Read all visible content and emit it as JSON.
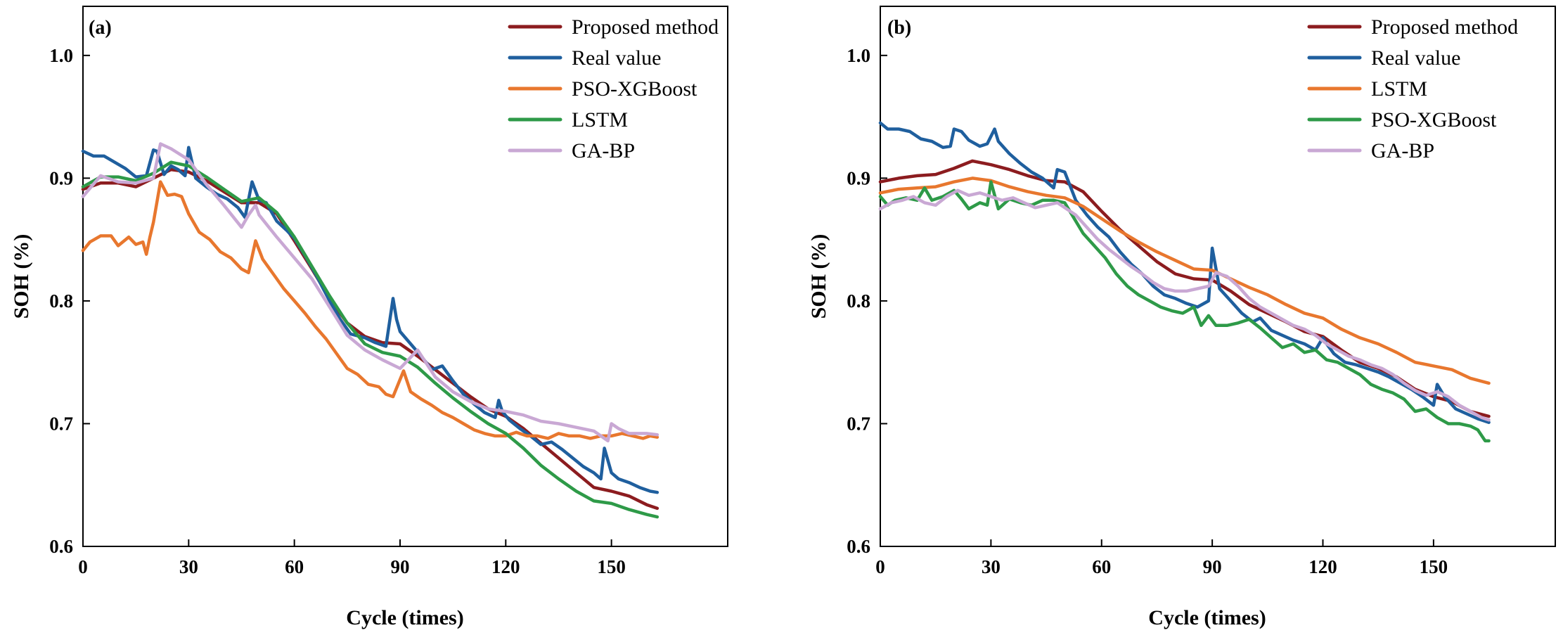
{
  "chart_data": [
    {
      "type": "line",
      "panel_label": "(a)",
      "xlabel": "Cycle (times)",
      "ylabel": "SOH (%)",
      "xlim": [
        0,
        183
      ],
      "ylim": [
        0.6,
        1.04
      ],
      "xticks": [
        0,
        30,
        60,
        90,
        120,
        150
      ],
      "xtick_labels": [
        "0",
        "30",
        "60",
        "90",
        "120",
        "150"
      ],
      "yticks": [
        0.6,
        0.7,
        0.8,
        0.9,
        1.0
      ],
      "ytick_labels": [
        "0.6",
        "0.7",
        "0.8",
        "0.9",
        "1.0"
      ],
      "legend_position": "top-right",
      "series": [
        {
          "name": "Proposed method",
          "color": "#8c1c1f",
          "x": [
            0,
            5,
            10,
            15,
            20,
            25,
            30,
            35,
            40,
            45,
            50,
            55,
            60,
            65,
            70,
            75,
            80,
            85,
            90,
            95,
            100,
            105,
            110,
            115,
            120,
            125,
            130,
            135,
            140,
            145,
            150,
            155,
            160,
            163
          ],
          "y": [
            0.891,
            0.896,
            0.896,
            0.893,
            0.9,
            0.907,
            0.905,
            0.898,
            0.889,
            0.88,
            0.88,
            0.871,
            0.849,
            0.826,
            0.802,
            0.782,
            0.771,
            0.766,
            0.765,
            0.755,
            0.744,
            0.733,
            0.722,
            0.712,
            0.706,
            0.696,
            0.684,
            0.672,
            0.66,
            0.648,
            0.645,
            0.641,
            0.634,
            0.631
          ]
        },
        {
          "name": "Real value",
          "color": "#1f5f9e",
          "x": [
            0,
            3,
            6,
            9,
            12,
            15,
            18,
            20,
            21,
            23,
            25,
            27,
            29,
            30,
            32,
            35,
            38,
            41,
            44,
            46,
            48,
            50,
            52,
            55,
            58,
            60,
            63,
            66,
            70,
            73,
            76,
            80,
            83,
            86,
            88,
            89,
            90,
            93,
            96,
            99,
            102,
            105,
            108,
            111,
            114,
            117,
            118,
            119,
            121,
            124,
            127,
            130,
            133,
            136,
            139,
            142,
            145,
            147,
            148,
            149,
            150,
            152,
            155,
            158,
            161,
            163
          ],
          "y": [
            0.922,
            0.918,
            0.918,
            0.913,
            0.908,
            0.901,
            0.902,
            0.923,
            0.922,
            0.903,
            0.91,
            0.907,
            0.902,
            0.925,
            0.9,
            0.893,
            0.887,
            0.883,
            0.876,
            0.868,
            0.897,
            0.882,
            0.88,
            0.865,
            0.857,
            0.851,
            0.837,
            0.822,
            0.8,
            0.785,
            0.773,
            0.77,
            0.766,
            0.763,
            0.802,
            0.785,
            0.775,
            0.765,
            0.755,
            0.744,
            0.747,
            0.735,
            0.724,
            0.716,
            0.709,
            0.705,
            0.719,
            0.71,
            0.703,
            0.696,
            0.69,
            0.683,
            0.685,
            0.679,
            0.672,
            0.665,
            0.66,
            0.655,
            0.68,
            0.67,
            0.66,
            0.655,
            0.652,
            0.648,
            0.645,
            0.644
          ]
        },
        {
          "name": "PSO-XGBoost",
          "color": "#e8772e",
          "x": [
            0,
            2,
            5,
            8,
            10,
            13,
            15,
            17,
            18,
            19,
            20,
            22,
            24,
            26,
            28,
            30,
            33,
            36,
            39,
            42,
            45,
            47,
            49,
            51,
            54,
            57,
            60,
            63,
            66,
            69,
            72,
            75,
            78,
            81,
            84,
            86,
            88,
            90,
            91,
            93,
            96,
            99,
            102,
            105,
            108,
            111,
            114,
            117,
            120,
            123,
            126,
            129,
            132,
            135,
            138,
            141,
            144,
            147,
            150,
            153,
            156,
            159,
            161,
            163
          ],
          "y": [
            0.841,
            0.848,
            0.853,
            0.853,
            0.845,
            0.852,
            0.846,
            0.848,
            0.838,
            0.852,
            0.864,
            0.897,
            0.886,
            0.887,
            0.885,
            0.871,
            0.856,
            0.85,
            0.84,
            0.835,
            0.826,
            0.823,
            0.849,
            0.834,
            0.822,
            0.81,
            0.8,
            0.79,
            0.779,
            0.769,
            0.757,
            0.745,
            0.74,
            0.732,
            0.73,
            0.724,
            0.722,
            0.736,
            0.743,
            0.726,
            0.72,
            0.715,
            0.709,
            0.705,
            0.7,
            0.695,
            0.692,
            0.69,
            0.69,
            0.693,
            0.69,
            0.69,
            0.688,
            0.692,
            0.69,
            0.69,
            0.688,
            0.69,
            0.69,
            0.692,
            0.69,
            0.688,
            0.69,
            0.689
          ]
        },
        {
          "name": "LSTM",
          "color": "#2e9a48",
          "x": [
            0,
            5,
            10,
            15,
            20,
            25,
            30,
            35,
            40,
            45,
            50,
            55,
            60,
            65,
            70,
            75,
            80,
            85,
            90,
            95,
            100,
            105,
            110,
            115,
            120,
            125,
            130,
            135,
            140,
            145,
            150,
            155,
            160,
            163
          ],
          "y": [
            0.893,
            0.901,
            0.901,
            0.898,
            0.904,
            0.913,
            0.91,
            0.901,
            0.891,
            0.881,
            0.884,
            0.872,
            0.852,
            0.828,
            0.804,
            0.782,
            0.765,
            0.758,
            0.755,
            0.746,
            0.733,
            0.721,
            0.71,
            0.7,
            0.692,
            0.68,
            0.666,
            0.655,
            0.645,
            0.637,
            0.635,
            0.63,
            0.626,
            0.624
          ]
        },
        {
          "name": "GA-BP",
          "color": "#c9a8d4",
          "x": [
            0,
            5,
            10,
            15,
            20,
            22,
            25,
            30,
            35,
            40,
            45,
            47,
            49,
            50,
            55,
            60,
            65,
            70,
            75,
            80,
            85,
            90,
            95,
            100,
            105,
            110,
            115,
            120,
            125,
            130,
            135,
            140,
            145,
            149,
            150,
            152,
            155,
            160,
            163
          ],
          "y": [
            0.885,
            0.902,
            0.897,
            0.896,
            0.9,
            0.928,
            0.924,
            0.915,
            0.895,
            0.878,
            0.86,
            0.87,
            0.878,
            0.87,
            0.852,
            0.835,
            0.818,
            0.795,
            0.772,
            0.76,
            0.752,
            0.745,
            0.76,
            0.738,
            0.726,
            0.718,
            0.712,
            0.71,
            0.707,
            0.702,
            0.7,
            0.697,
            0.694,
            0.686,
            0.7,
            0.696,
            0.692,
            0.692,
            0.691
          ]
        }
      ]
    },
    {
      "type": "line",
      "panel_label": "(b)",
      "xlabel": "Cycle (times)",
      "ylabel": "SOH (%)",
      "xlim": [
        0,
        183
      ],
      "ylim": [
        0.6,
        1.04
      ],
      "xticks": [
        0,
        30,
        60,
        90,
        120,
        150
      ],
      "xtick_labels": [
        "0",
        "30",
        "60",
        "90",
        "120",
        "150"
      ],
      "yticks": [
        0.6,
        0.7,
        0.8,
        0.9,
        1.0
      ],
      "ytick_labels": [
        "0.6",
        "0.7",
        "0.8",
        "0.9",
        "1.0"
      ],
      "legend_position": "top-right",
      "series": [
        {
          "name": "Proposed method",
          "color": "#8c1c1f",
          "x": [
            0,
            5,
            10,
            15,
            20,
            25,
            30,
            35,
            40,
            45,
            50,
            55,
            60,
            65,
            70,
            75,
            80,
            85,
            90,
            95,
            100,
            105,
            110,
            115,
            120,
            125,
            130,
            135,
            140,
            145,
            150,
            155,
            160,
            165
          ],
          "y": [
            0.897,
            0.9,
            0.902,
            0.903,
            0.908,
            0.914,
            0.911,
            0.907,
            0.902,
            0.898,
            0.897,
            0.889,
            0.873,
            0.858,
            0.845,
            0.832,
            0.822,
            0.818,
            0.817,
            0.808,
            0.797,
            0.79,
            0.783,
            0.775,
            0.771,
            0.76,
            0.75,
            0.745,
            0.738,
            0.728,
            0.722,
            0.718,
            0.71,
            0.706
          ]
        },
        {
          "name": "Real value",
          "color": "#1f5f9e",
          "x": [
            0,
            2,
            5,
            8,
            11,
            14,
            17,
            19,
            20,
            22,
            24,
            27,
            29,
            31,
            32,
            35,
            38,
            41,
            44,
            47,
            48,
            50,
            53,
            56,
            59,
            62,
            65,
            68,
            71,
            74,
            77,
            80,
            83,
            86,
            89,
            90,
            92,
            95,
            98,
            101,
            103,
            106,
            109,
            112,
            115,
            118,
            120,
            121,
            123,
            126,
            129,
            132,
            135,
            138,
            141,
            144,
            147,
            150,
            151,
            153,
            156,
            159,
            162,
            165
          ],
          "y": [
            0.945,
            0.94,
            0.94,
            0.938,
            0.932,
            0.93,
            0.925,
            0.926,
            0.94,
            0.938,
            0.931,
            0.926,
            0.928,
            0.94,
            0.93,
            0.92,
            0.912,
            0.905,
            0.9,
            0.892,
            0.907,
            0.905,
            0.882,
            0.87,
            0.86,
            0.852,
            0.84,
            0.83,
            0.822,
            0.812,
            0.805,
            0.802,
            0.798,
            0.795,
            0.8,
            0.843,
            0.81,
            0.8,
            0.79,
            0.783,
            0.786,
            0.776,
            0.772,
            0.768,
            0.765,
            0.76,
            0.77,
            0.765,
            0.757,
            0.75,
            0.748,
            0.745,
            0.742,
            0.738,
            0.733,
            0.728,
            0.722,
            0.715,
            0.732,
            0.722,
            0.712,
            0.708,
            0.704,
            0.701
          ]
        },
        {
          "name": "LSTM",
          "color": "#e8772e",
          "x": [
            0,
            5,
            10,
            15,
            20,
            25,
            30,
            35,
            40,
            45,
            50,
            55,
            60,
            65,
            70,
            75,
            80,
            85,
            90,
            95,
            100,
            105,
            110,
            115,
            120,
            125,
            130,
            135,
            140,
            145,
            150,
            155,
            160,
            165
          ],
          "y": [
            0.888,
            0.891,
            0.892,
            0.893,
            0.897,
            0.9,
            0.898,
            0.893,
            0.889,
            0.886,
            0.884,
            0.877,
            0.867,
            0.857,
            0.848,
            0.84,
            0.833,
            0.826,
            0.825,
            0.818,
            0.811,
            0.805,
            0.797,
            0.79,
            0.786,
            0.777,
            0.77,
            0.765,
            0.758,
            0.75,
            0.747,
            0.744,
            0.737,
            0.733
          ]
        },
        {
          "name": "PSO-XGBoost",
          "color": "#2e9a48",
          "x": [
            0,
            2,
            4,
            7,
            10,
            12,
            14,
            17,
            20,
            22,
            24,
            27,
            29,
            30,
            32,
            35,
            38,
            41,
            44,
            47,
            50,
            52,
            55,
            58,
            61,
            64,
            67,
            70,
            73,
            76,
            79,
            82,
            85,
            87,
            89,
            91,
            94,
            97,
            100,
            103,
            106,
            109,
            112,
            115,
            118,
            121,
            124,
            127,
            130,
            133,
            136,
            139,
            142,
            145,
            148,
            151,
            154,
            157,
            160,
            162,
            164,
            165
          ],
          "y": [
            0.885,
            0.878,
            0.882,
            0.884,
            0.882,
            0.892,
            0.882,
            0.885,
            0.89,
            0.883,
            0.875,
            0.88,
            0.878,
            0.897,
            0.875,
            0.883,
            0.88,
            0.878,
            0.882,
            0.882,
            0.88,
            0.87,
            0.855,
            0.845,
            0.835,
            0.822,
            0.812,
            0.805,
            0.8,
            0.795,
            0.792,
            0.79,
            0.795,
            0.78,
            0.788,
            0.78,
            0.78,
            0.782,
            0.785,
            0.778,
            0.77,
            0.762,
            0.765,
            0.758,
            0.76,
            0.752,
            0.75,
            0.745,
            0.74,
            0.732,
            0.728,
            0.725,
            0.72,
            0.71,
            0.712,
            0.705,
            0.7,
            0.7,
            0.698,
            0.695,
            0.686,
            0.686
          ]
        },
        {
          "name": "GA-BP",
          "color": "#c9a8d4",
          "x": [
            0,
            3,
            6,
            9,
            12,
            15,
            18,
            21,
            24,
            27,
            30,
            33,
            36,
            39,
            42,
            45,
            48,
            50,
            53,
            56,
            59,
            62,
            65,
            68,
            71,
            74,
            77,
            80,
            83,
            86,
            89,
            91,
            94,
            97,
            100,
            103,
            106,
            109,
            112,
            115,
            118,
            121,
            124,
            127,
            130,
            133,
            136,
            139,
            142,
            145,
            148,
            151,
            154,
            157,
            160,
            163,
            165
          ],
          "y": [
            0.875,
            0.88,
            0.882,
            0.885,
            0.88,
            0.878,
            0.885,
            0.89,
            0.886,
            0.888,
            0.885,
            0.882,
            0.884,
            0.88,
            0.876,
            0.878,
            0.88,
            0.876,
            0.87,
            0.86,
            0.85,
            0.842,
            0.835,
            0.828,
            0.822,
            0.815,
            0.81,
            0.808,
            0.808,
            0.81,
            0.812,
            0.823,
            0.82,
            0.812,
            0.802,
            0.795,
            0.79,
            0.785,
            0.78,
            0.777,
            0.772,
            0.765,
            0.76,
            0.755,
            0.752,
            0.748,
            0.745,
            0.74,
            0.733,
            0.727,
            0.723,
            0.726,
            0.722,
            0.715,
            0.71,
            0.705,
            0.703
          ]
        }
      ]
    }
  ]
}
